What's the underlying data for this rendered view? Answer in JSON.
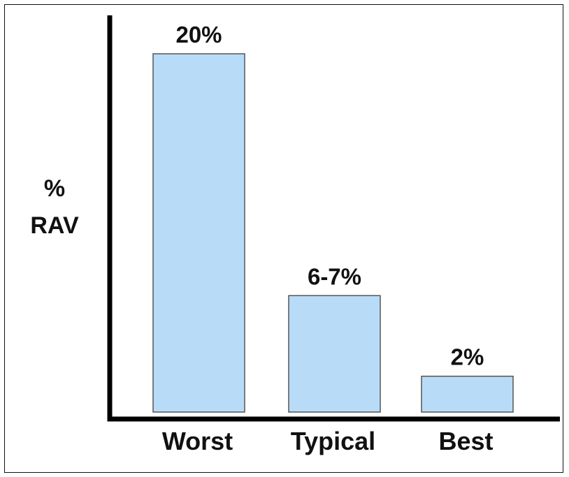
{
  "chart_data": {
    "type": "bar",
    "categories": [
      "Worst",
      "Typical",
      "Best"
    ],
    "values": [
      20,
      6.5,
      2
    ],
    "data_labels": [
      "20%",
      "6-7%",
      "2%"
    ],
    "ylabel_lines": [
      "%",
      "RAV"
    ],
    "ylim": [
      0,
      22
    ],
    "grid": false,
    "colors": {
      "bar_fill": "#b8dcf8",
      "bar_stroke": "#555555",
      "axis": "#000000",
      "text": "#111111"
    }
  }
}
